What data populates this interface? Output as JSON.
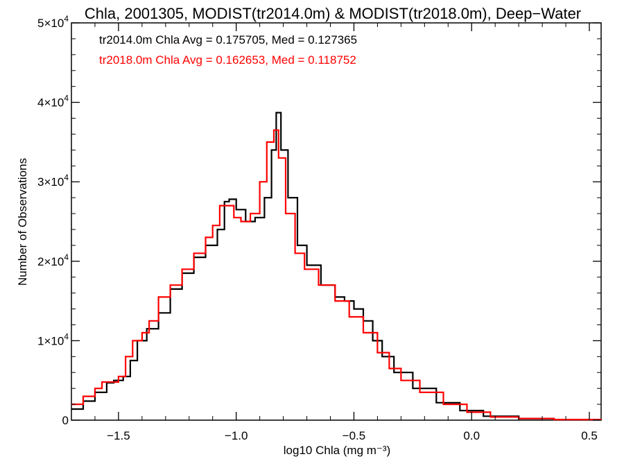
{
  "chart_data": {
    "type": "line",
    "step": true,
    "title": "Chla, 2001305, MODIST(tr2014.0m) & MODIST(tr2018.0m), Deep−Water",
    "xlabel": "log10 Chla (mg m⁻³)",
    "ylabel": "Number of Observations",
    "xlim": [
      -1.7,
      0.55
    ],
    "ylim": [
      0,
      50000
    ],
    "xticks": [
      -1.5,
      -1.0,
      -0.5,
      0.0,
      0.5
    ],
    "xtick_labels": [
      "−1.5",
      "−1.0",
      "−0.5",
      "0.0",
      "0.5"
    ],
    "yticks": [
      0,
      10000,
      20000,
      30000,
      40000,
      50000
    ],
    "ytick_labels": [
      {
        "mant": "0",
        "exp": ""
      },
      {
        "mant": "1×10",
        "exp": "4"
      },
      {
        "mant": "2×10",
        "exp": "4"
      },
      {
        "mant": "3×10",
        "exp": "4"
      },
      {
        "mant": "4×10",
        "exp": "4"
      },
      {
        "mant": "5×10",
        "exp": "4"
      }
    ],
    "annotations": [
      {
        "text": "tr2014.0m Chla Avg = 0.175705, Med = 0.127365",
        "color": "#000000"
      },
      {
        "text": "tr2018.0m Chla Avg = 0.162653, Med = 0.118752",
        "color": "#ff0000"
      }
    ],
    "grid": false,
    "series": [
      {
        "color": "#000000",
        "points": [
          [
            -1.7,
            1400
          ],
          [
            -1.65,
            2400
          ],
          [
            -1.6,
            3500
          ],
          [
            -1.55,
            4700
          ],
          [
            -1.52,
            5000
          ],
          [
            -1.48,
            5500
          ],
          [
            -1.45,
            7500
          ],
          [
            -1.42,
            10000
          ],
          [
            -1.38,
            11500
          ],
          [
            -1.33,
            13500
          ],
          [
            -1.28,
            16500
          ],
          [
            -1.23,
            18500
          ],
          [
            -1.18,
            20500
          ],
          [
            -1.13,
            22000
          ],
          [
            -1.08,
            24000
          ],
          [
            -1.05,
            27500
          ],
          [
            -1.03,
            27800
          ],
          [
            -1.0,
            26500
          ],
          [
            -0.96,
            25000
          ],
          [
            -0.92,
            25500
          ],
          [
            -0.88,
            28000
          ],
          [
            -0.85,
            34000
          ],
          [
            -0.83,
            38700
          ],
          [
            -0.81,
            34000
          ],
          [
            -0.78,
            28000
          ],
          [
            -0.74,
            22000
          ],
          [
            -0.7,
            19500
          ],
          [
            -0.64,
            17000
          ],
          [
            -0.58,
            15500
          ],
          [
            -0.54,
            15000
          ],
          [
            -0.5,
            14000
          ],
          [
            -0.46,
            12500
          ],
          [
            -0.42,
            10000
          ],
          [
            -0.38,
            8000
          ],
          [
            -0.33,
            6000
          ],
          [
            -0.25,
            4000
          ],
          [
            -0.15,
            2200
          ],
          [
            -0.05,
            1200
          ],
          [
            0.05,
            500
          ],
          [
            0.2,
            200
          ],
          [
            0.35,
            80
          ],
          [
            0.55,
            20
          ]
        ]
      },
      {
        "color": "#ff0000",
        "points": [
          [
            -1.7,
            2000
          ],
          [
            -1.65,
            3000
          ],
          [
            -1.6,
            4000
          ],
          [
            -1.57,
            4800
          ],
          [
            -1.53,
            4800
          ],
          [
            -1.5,
            5500
          ],
          [
            -1.47,
            8000
          ],
          [
            -1.44,
            10000
          ],
          [
            -1.4,
            11000
          ],
          [
            -1.37,
            12500
          ],
          [
            -1.33,
            15500
          ],
          [
            -1.28,
            17000
          ],
          [
            -1.23,
            19000
          ],
          [
            -1.18,
            21000
          ],
          [
            -1.13,
            23000
          ],
          [
            -1.1,
            24500
          ],
          [
            -1.07,
            27000
          ],
          [
            -1.04,
            27000
          ],
          [
            -1.01,
            25500
          ],
          [
            -0.98,
            25000
          ],
          [
            -0.94,
            26000
          ],
          [
            -0.9,
            30000
          ],
          [
            -0.87,
            35000
          ],
          [
            -0.84,
            36500
          ],
          [
            -0.82,
            33000
          ],
          [
            -0.79,
            26000
          ],
          [
            -0.75,
            21000
          ],
          [
            -0.71,
            19000
          ],
          [
            -0.65,
            17000
          ],
          [
            -0.58,
            15000
          ],
          [
            -0.52,
            13000
          ],
          [
            -0.46,
            11000
          ],
          [
            -0.4,
            8500
          ],
          [
            -0.35,
            6500
          ],
          [
            -0.3,
            5000
          ],
          [
            -0.22,
            3500
          ],
          [
            -0.12,
            2000
          ],
          [
            -0.02,
            1000
          ],
          [
            0.08,
            400
          ],
          [
            0.2,
            200
          ],
          [
            0.35,
            80
          ],
          [
            0.55,
            20
          ]
        ]
      }
    ]
  }
}
